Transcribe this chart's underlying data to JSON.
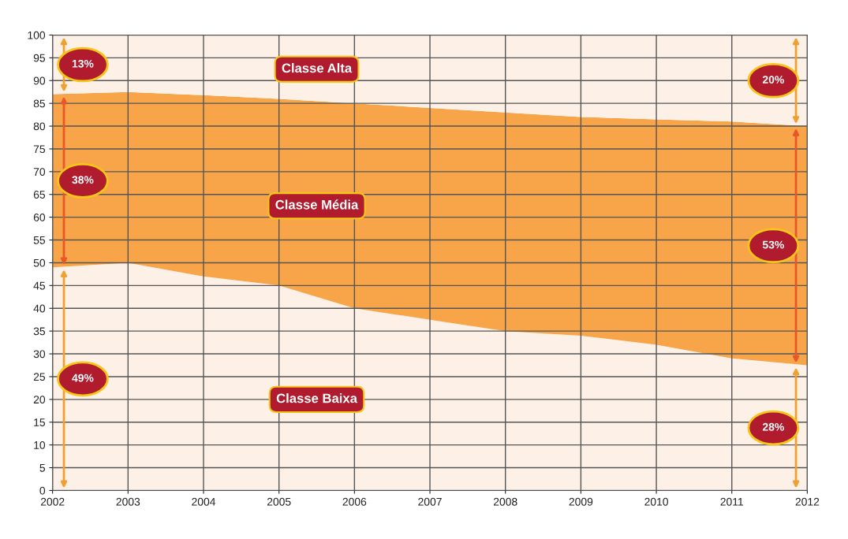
{
  "chart_data": {
    "type": "area",
    "stacked": true,
    "legend": false,
    "grid": true,
    "x": [
      2002,
      2003,
      2004,
      2005,
      2006,
      2007,
      2008,
      2009,
      2010,
      2011,
      2012
    ],
    "xlim": [
      2002,
      2012
    ],
    "xticks": [
      2002,
      2003,
      2004,
      2005,
      2006,
      2007,
      2008,
      2009,
      2010,
      2011,
      2012
    ],
    "ylim": [
      0,
      100
    ],
    "yticks": [
      0,
      5,
      10,
      15,
      20,
      25,
      30,
      35,
      40,
      45,
      50,
      55,
      60,
      65,
      70,
      75,
      80,
      85,
      90,
      95,
      100
    ],
    "series": [
      {
        "name": "Classe Baixa",
        "color": "#fdf0e7",
        "values": [
          49,
          50,
          47,
          45,
          40,
          37.5,
          35,
          34,
          32,
          29,
          27.5
        ]
      },
      {
        "name": "Classe Média",
        "color": "#f7a548",
        "values": [
          38,
          37.5,
          39.8,
          41,
          45,
          46.5,
          48,
          48,
          49.5,
          52,
          52.5
        ]
      },
      {
        "name": "Classe Alta",
        "color": "#fdf0e7",
        "values": [
          13,
          12.5,
          13.2,
          14,
          15,
          16,
          17,
          18,
          18.5,
          19,
          20
        ]
      }
    ],
    "annotations": [
      "49%",
      "38%",
      "13%",
      "28%",
      "53%",
      "20%"
    ]
  }
}
